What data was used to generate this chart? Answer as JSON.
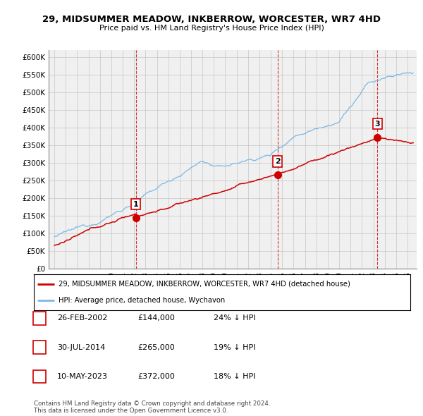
{
  "title": "29, MIDSUMMER MEADOW, INKBERROW, WORCESTER, WR7 4HD",
  "subtitle": "Price paid vs. HM Land Registry's House Price Index (HPI)",
  "ylim": [
    0,
    620000
  ],
  "yticks": [
    0,
    50000,
    100000,
    150000,
    200000,
    250000,
    300000,
    350000,
    400000,
    450000,
    500000,
    550000,
    600000
  ],
  "ytick_labels": [
    "£0",
    "£50K",
    "£100K",
    "£150K",
    "£200K",
    "£250K",
    "£300K",
    "£350K",
    "£400K",
    "£450K",
    "£500K",
    "£550K",
    "£600K"
  ],
  "hpi_color": "#7ab8e8",
  "price_color": "#cc0000",
  "vline_color": "#cc0000",
  "sales": [
    {
      "date_num": 2002.15,
      "price": 144000,
      "label": "1"
    },
    {
      "date_num": 2014.58,
      "price": 265000,
      "label": "2"
    },
    {
      "date_num": 2023.36,
      "price": 372000,
      "label": "3"
    }
  ],
  "table_rows": [
    {
      "label": "1",
      "date": "26-FEB-2002",
      "price": "£144,000",
      "hpi": "24% ↓ HPI"
    },
    {
      "label": "2",
      "date": "30-JUL-2014",
      "price": "£265,000",
      "hpi": "19% ↓ HPI"
    },
    {
      "label": "3",
      "date": "10-MAY-2023",
      "price": "£372,000",
      "hpi": "18% ↓ HPI"
    }
  ],
  "legend_entries": [
    {
      "label": "29, MIDSUMMER MEADOW, INKBERROW, WORCESTER, WR7 4HD (detached house)",
      "color": "#cc0000"
    },
    {
      "label": "HPI: Average price, detached house, Wychavon",
      "color": "#7ab8e8"
    }
  ],
  "footnote": "Contains HM Land Registry data © Crown copyright and database right 2024.\nThis data is licensed under the Open Government Licence v3.0.",
  "xlim_start": 1994.5,
  "xlim_end": 2026.8,
  "bg_color": "#f0f0f0"
}
